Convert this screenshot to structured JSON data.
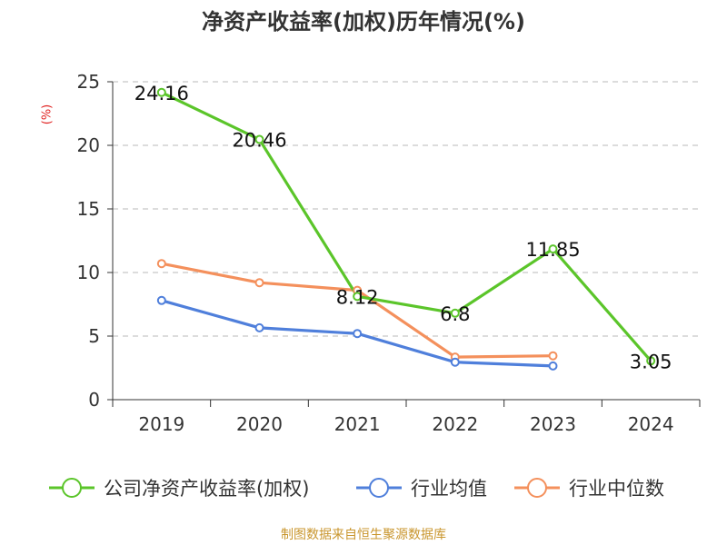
{
  "chart_data": {
    "type": "line",
    "title": "净资产收益率(加权)历年情况(%)",
    "ylabel": "(%)",
    "xlabel": "",
    "categories": [
      "2019",
      "2020",
      "2021",
      "2022",
      "2023",
      "2024"
    ],
    "ylim": [
      0,
      25
    ],
    "yticks": [
      "0",
      "5",
      "10",
      "15",
      "20",
      "25"
    ],
    "grid": true,
    "legend_position": "bottom",
    "series": [
      {
        "name": "公司净资产收益率(加权)",
        "color": "#5bc52a",
        "values": [
          24.16,
          20.46,
          8.12,
          6.8,
          11.85,
          3.05
        ],
        "labels": [
          "24.16",
          "20.46",
          "8.12",
          "6.8",
          "11.85",
          "3.05"
        ]
      },
      {
        "name": "行业均值",
        "color": "#4f7fdb",
        "values": [
          7.8,
          5.65,
          5.2,
          2.95,
          2.65,
          null
        ]
      },
      {
        "name": "行业中位数",
        "color": "#f4905c",
        "values": [
          10.7,
          9.2,
          8.6,
          3.35,
          3.45,
          null
        ]
      }
    ]
  },
  "source": "制图数据来自恒生聚源数据库"
}
